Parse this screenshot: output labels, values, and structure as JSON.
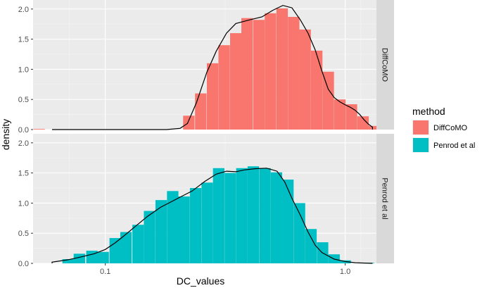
{
  "chart_data": {
    "type": "histogram",
    "xlabel": "DC_values",
    "ylabel": "density",
    "x_scale": "log10",
    "xlim": [
      0.05,
      1.35
    ],
    "ylim": [
      0,
      2.15
    ],
    "x_ticks": [
      0.1,
      1.0
    ],
    "x_tick_labels": [
      "0.1",
      "1.0"
    ],
    "y_ticks": [
      0.0,
      0.5,
      1.0,
      1.5,
      2.0
    ],
    "y_tick_labels": [
      "0.0",
      "0.5",
      "1.0",
      "1.5",
      "2.0"
    ],
    "bin_width_log10": 0.0477,
    "legend": {
      "title": "method",
      "placement": "right",
      "entries": [
        {
          "label": "DiffCoMO",
          "color": "#F8766D"
        },
        {
          "label": "Penrod et al",
          "color": "#00BFC4"
        }
      ]
    },
    "panels": [
      {
        "strip_label": "DiffCoMO",
        "color": "#F8766D",
        "bins": [
          {
            "x": 0.053,
            "y": 0.01
          },
          {
            "x": 0.223,
            "y": 0.23
          },
          {
            "x": 0.25,
            "y": 0.6
          },
          {
            "x": 0.28,
            "y": 1.1
          },
          {
            "x": 0.313,
            "y": 1.4
          },
          {
            "x": 0.35,
            "y": 1.6
          },
          {
            "x": 0.39,
            "y": 1.85
          },
          {
            "x": 0.437,
            "y": 1.82
          },
          {
            "x": 0.488,
            "y": 1.93
          },
          {
            "x": 0.546,
            "y": 2.01
          },
          {
            "x": 0.61,
            "y": 1.87
          },
          {
            "x": 0.681,
            "y": 1.66
          },
          {
            "x": 0.761,
            "y": 1.31
          },
          {
            "x": 0.85,
            "y": 0.96
          },
          {
            "x": 0.95,
            "y": 0.5
          },
          {
            "x": 1.062,
            "y": 0.42
          },
          {
            "x": 1.187,
            "y": 0.22
          },
          {
            "x": 1.29,
            "y": 0.06
          }
        ],
        "density_curve": [
          [
            0.06,
            0.0
          ],
          [
            0.1,
            0.0
          ],
          [
            0.18,
            0.0
          ],
          [
            0.205,
            0.02
          ],
          [
            0.22,
            0.1
          ],
          [
            0.24,
            0.45
          ],
          [
            0.265,
            0.95
          ],
          [
            0.29,
            1.3
          ],
          [
            0.32,
            1.6
          ],
          [
            0.35,
            1.76
          ],
          [
            0.4,
            1.82
          ],
          [
            0.45,
            1.87
          ],
          [
            0.5,
            1.98
          ],
          [
            0.55,
            2.06
          ],
          [
            0.6,
            2.02
          ],
          [
            0.65,
            1.82
          ],
          [
            0.7,
            1.6
          ],
          [
            0.75,
            1.32
          ],
          [
            0.8,
            0.97
          ],
          [
            0.85,
            0.67
          ],
          [
            0.9,
            0.53
          ],
          [
            0.95,
            0.46
          ],
          [
            1.0,
            0.41
          ],
          [
            1.05,
            0.37
          ],
          [
            1.1,
            0.32
          ],
          [
            1.15,
            0.25
          ],
          [
            1.2,
            0.16
          ],
          [
            1.25,
            0.09
          ],
          [
            1.3,
            0.04
          ]
        ]
      },
      {
        "strip_label": "Penrod et al",
        "color": "#00BFC4",
        "bins": [
          {
            "x": 0.07,
            "y": 0.07
          },
          {
            "x": 0.078,
            "y": 0.16
          },
          {
            "x": 0.088,
            "y": 0.21
          },
          {
            "x": 0.098,
            "y": 0.19
          },
          {
            "x": 0.11,
            "y": 0.42
          },
          {
            "x": 0.122,
            "y": 0.52
          },
          {
            "x": 0.137,
            "y": 0.64
          },
          {
            "x": 0.153,
            "y": 0.87
          },
          {
            "x": 0.171,
            "y": 1.05
          },
          {
            "x": 0.191,
            "y": 1.2
          },
          {
            "x": 0.213,
            "y": 1.11
          },
          {
            "x": 0.238,
            "y": 1.25
          },
          {
            "x": 0.266,
            "y": 1.34
          },
          {
            "x": 0.297,
            "y": 1.58
          },
          {
            "x": 0.332,
            "y": 1.5
          },
          {
            "x": 0.371,
            "y": 1.58
          },
          {
            "x": 0.414,
            "y": 1.61
          },
          {
            "x": 0.463,
            "y": 1.58
          },
          {
            "x": 0.517,
            "y": 1.51
          },
          {
            "x": 0.577,
            "y": 1.39
          },
          {
            "x": 0.645,
            "y": 1.0
          },
          {
            "x": 0.72,
            "y": 0.57
          },
          {
            "x": 0.805,
            "y": 0.35
          },
          {
            "x": 0.899,
            "y": 0.15
          },
          {
            "x": 1.0,
            "y": 0.05
          },
          {
            "x": 1.25,
            "y": 0.01
          }
        ],
        "density_curve": [
          [
            0.06,
            0.02
          ],
          [
            0.07,
            0.06
          ],
          [
            0.08,
            0.11
          ],
          [
            0.09,
            0.16
          ],
          [
            0.1,
            0.23
          ],
          [
            0.11,
            0.34
          ],
          [
            0.12,
            0.46
          ],
          [
            0.135,
            0.63
          ],
          [
            0.15,
            0.78
          ],
          [
            0.17,
            0.93
          ],
          [
            0.19,
            1.03
          ],
          [
            0.21,
            1.12
          ],
          [
            0.23,
            1.2
          ],
          [
            0.26,
            1.36
          ],
          [
            0.29,
            1.48
          ],
          [
            0.32,
            1.53
          ],
          [
            0.35,
            1.52
          ],
          [
            0.38,
            1.55
          ],
          [
            0.42,
            1.57
          ],
          [
            0.47,
            1.58
          ],
          [
            0.52,
            1.53
          ],
          [
            0.56,
            1.35
          ],
          [
            0.6,
            1.08
          ],
          [
            0.65,
            0.8
          ],
          [
            0.7,
            0.52
          ],
          [
            0.75,
            0.3
          ],
          [
            0.8,
            0.18
          ],
          [
            0.9,
            0.07
          ],
          [
            1.0,
            0.03
          ],
          [
            1.1,
            0.01
          ],
          [
            1.3,
            0.0
          ]
        ]
      }
    ]
  }
}
